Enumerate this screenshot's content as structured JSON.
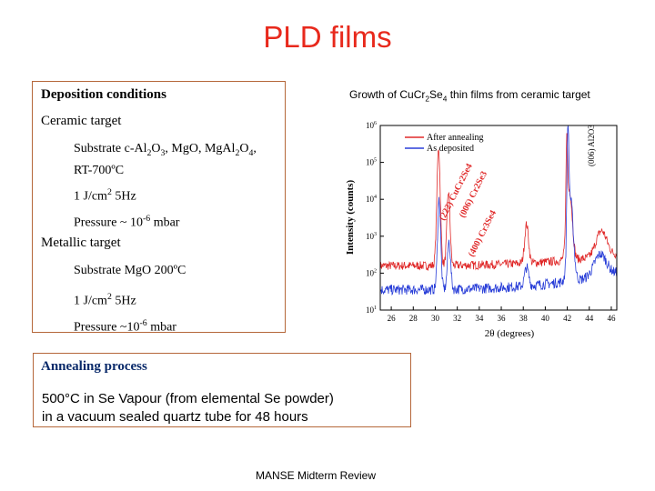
{
  "title": "PLD films",
  "deposition": {
    "heading": "Deposition conditions",
    "ceramic": {
      "heading": "Ceramic target",
      "substrate": {
        "pre": "Substrate c-Al",
        "s1": "2",
        "m1": "O",
        "s2": "3",
        "m2": ", MgO, MgAl",
        "s3": "2",
        "m3": "O",
        "s4": "4",
        "post": ","
      },
      "temp": "RT-700ºC",
      "fluence": {
        "pre": "1 J/cm",
        "sup": "2",
        "post": " 5Hz"
      },
      "pressure": {
        "pre": "Pressure ~ 10",
        "sup": "-6",
        "post": " mbar"
      }
    },
    "metallic": {
      "heading": "Metallic target",
      "substrate": "Substrate MgO 200ºC",
      "fluence": {
        "pre": "1 J/cm",
        "sup": "2",
        "post": " 5Hz"
      },
      "pressure": {
        "pre": "Pressure ~10",
        "sup": "-6",
        "post": " mbar"
      }
    }
  },
  "growth_title": {
    "pre": "Growth of CuCr",
    "s1": "2",
    "m1": "Se",
    "s2": "4",
    "post": " thin films from ceramic target"
  },
  "annealing": {
    "heading": "Annealing process",
    "line1": "500°C in Se Vapour (from elemental Se powder)",
    "line2": "in a vacuum sealed quartz tube for 48 hours"
  },
  "footer": "MANSE Midterm Review",
  "chart_data": {
    "type": "line",
    "xlabel": "2θ (degrees)",
    "ylabel": "Intensity (counts)",
    "xlim": [
      25,
      46.5
    ],
    "ylim_log10": [
      1,
      6
    ],
    "y_scale": "log",
    "x_ticks": [
      "26",
      "28",
      "30",
      "32",
      "34",
      "36",
      "38",
      "40",
      "42",
      "44",
      "46"
    ],
    "y_ticks": [
      {
        "base": "10",
        "exp": "1"
      },
      {
        "base": "10",
        "exp": "2"
      },
      {
        "base": "10",
        "exp": "3"
      },
      {
        "base": "10",
        "exp": "4"
      },
      {
        "base": "10",
        "exp": "5"
      },
      {
        "base": "10",
        "exp": "6"
      }
    ],
    "legend_position": "top-right",
    "series": [
      {
        "name": "After annealing",
        "color": "#e02a2a",
        "baseline": 2.2,
        "end": 2.5,
        "noise": 0.12,
        "peaks": [
          [
            30.3,
            3.2,
            0.22
          ],
          [
            31.2,
            2.0,
            0.2
          ],
          [
            38.3,
            1.05,
            0.25
          ],
          [
            41.95,
            2.4,
            0.1
          ],
          [
            42.2,
            1.9,
            0.35
          ],
          [
            45.1,
            0.7,
            0.7
          ]
        ]
      },
      {
        "name": "As deposited",
        "color": "#2a3fd8",
        "baseline": 1.55,
        "end": 2.0,
        "noise": 0.14,
        "peaks": [
          [
            30.35,
            2.45,
            0.2
          ],
          [
            31.25,
            1.3,
            0.2
          ],
          [
            38.3,
            0.5,
            0.25
          ],
          [
            42.05,
            3.1,
            0.12
          ],
          [
            42.3,
            2.2,
            0.35
          ],
          [
            45.0,
            0.6,
            0.8
          ]
        ]
      }
    ],
    "annotations": [
      {
        "text": "(222) CuCr2Se4"
      },
      {
        "text": "(006) Cr2Se3"
      },
      {
        "text": "(400) Cr3Se4"
      },
      {
        "text": "(006) Al2O3"
      }
    ]
  }
}
